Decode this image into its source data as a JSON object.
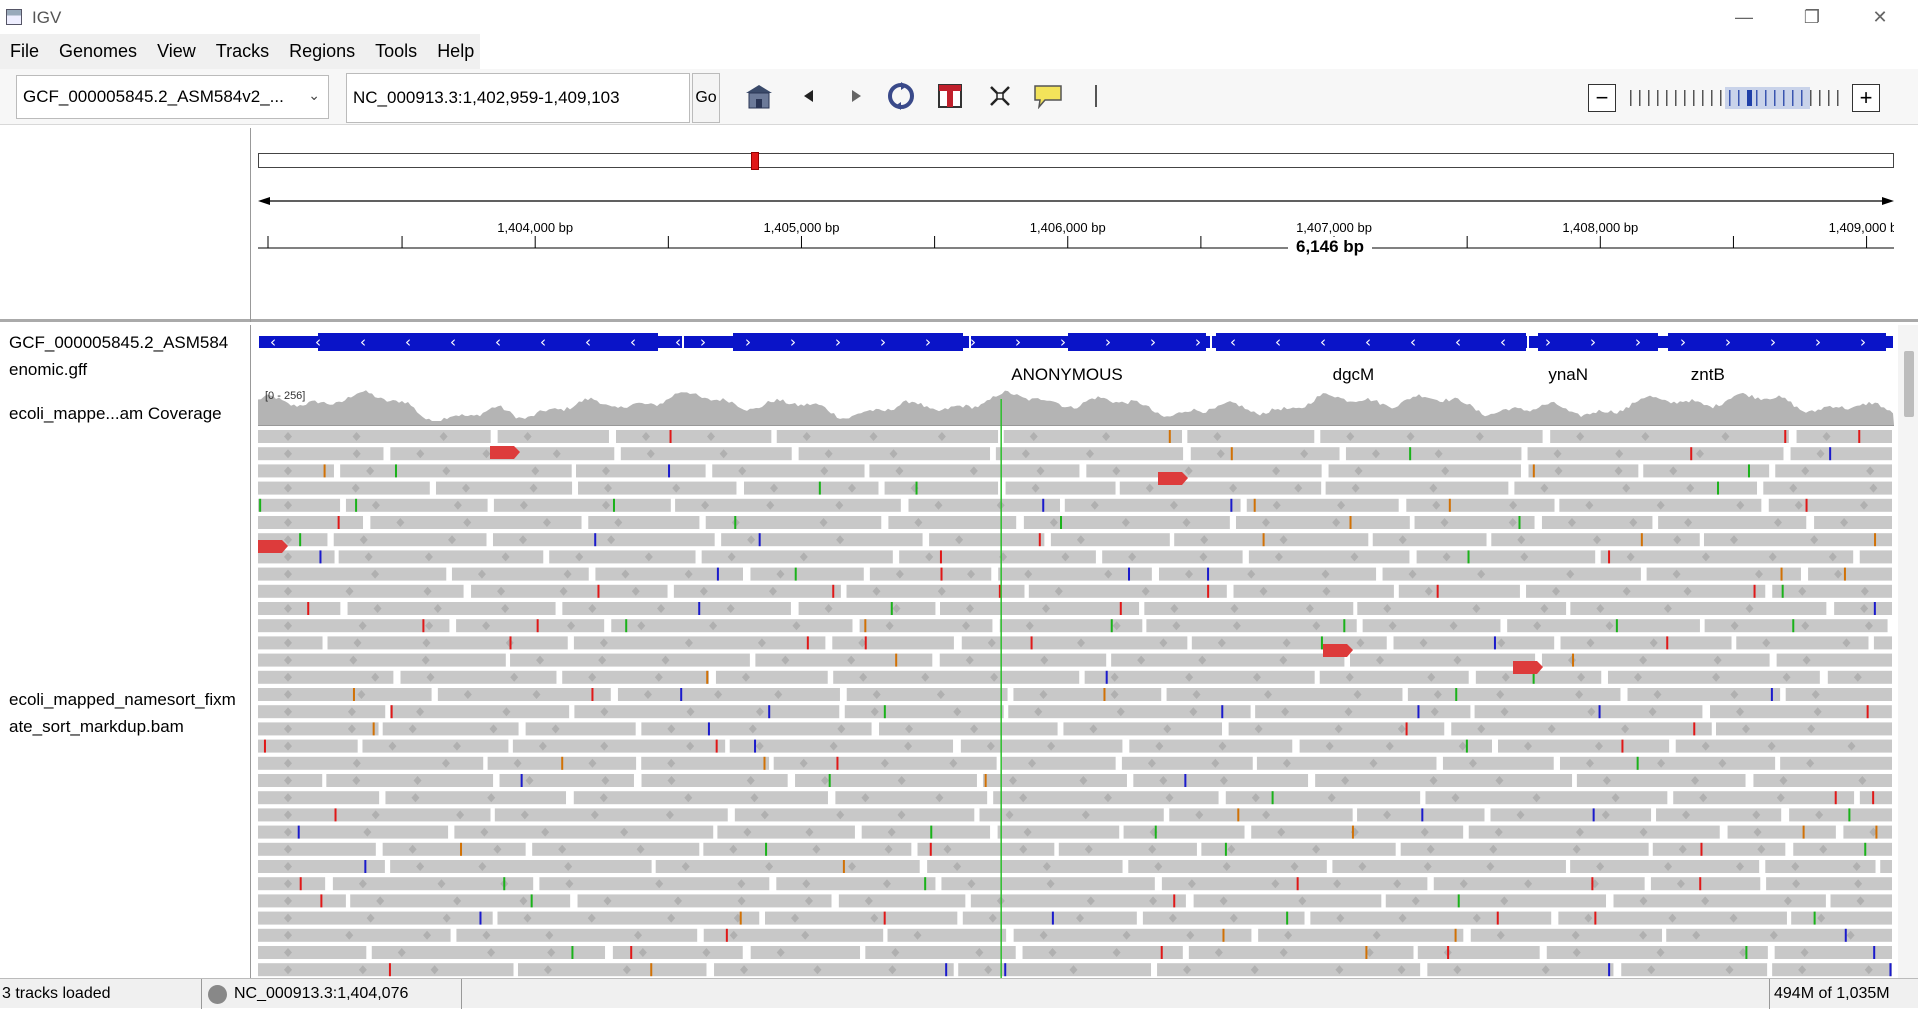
{
  "window": {
    "title": "IGV",
    "minimize": "—",
    "restore": "❐",
    "close": "✕"
  },
  "menu": [
    "File",
    "Genomes",
    "View",
    "Tracks",
    "Regions",
    "Tools",
    "Help"
  ],
  "toolbar": {
    "genome": "GCF_000005845.2_ASM584v2_...",
    "locus": "NC_000913.3:1,402,959-1,409,103",
    "go_label": "Go",
    "icons": [
      "home-icon",
      "back-icon",
      "forward-icon",
      "refresh-icon",
      "roi-icon",
      "fit-window-icon",
      "popup-info-icon"
    ],
    "zoom_minus": "−",
    "zoom_plus": "+",
    "zoom_level": 0.58
  },
  "ruler": {
    "span": "6,146 bp",
    "start": 1402959,
    "end": 1409103,
    "ticks": [
      {
        "label": "1,404,000 bp",
        "pos": 1404000
      },
      {
        "label": "1,405,000 bp",
        "pos": 1405000
      },
      {
        "label": "1,406,000 bp",
        "pos": 1406000
      },
      {
        "label": "1,407,000 bp",
        "pos": 1407000
      },
      {
        "label": "1,408,000 bp",
        "pos": 1408000
      },
      {
        "label": "1,409,000 bp",
        "pos": 1409000
      }
    ]
  },
  "tracks": {
    "gff_name_line1": "GCF_000005845.2_ASM584",
    "gff_name_line2": "enomic.gff",
    "coverage_name": "ecoli_mappe...am Coverage",
    "coverage_range": "[0 - 256]",
    "bam_name_line1": "ecoli_mapped_namesort_fixm",
    "bam_name_line2": "ate_sort_markdup.bam"
  },
  "genes": [
    {
      "name": "ANONYMOUS",
      "pos": 1405938
    },
    {
      "name": "dgcM",
      "pos": 1407145
    },
    {
      "name": "ynaN",
      "pos": 1407955
    },
    {
      "name": "zntB",
      "pos": 1408490
    }
  ],
  "colors": {
    "gene": "#0a14c8",
    "coverage": "#b4b4b4",
    "read": "#c8c8c8",
    "mismatch_A": "#1ab21a",
    "mismatch_C": "#1a1acc",
    "mismatch_G": "#d17105",
    "mismatch_T": "#e01818",
    "center_line": "#2dbf2d"
  },
  "status": {
    "tracks_loaded": "3 tracks loaded",
    "position": "NC_000913.3:1,404,076",
    "memory": "494M of 1,035M"
  }
}
